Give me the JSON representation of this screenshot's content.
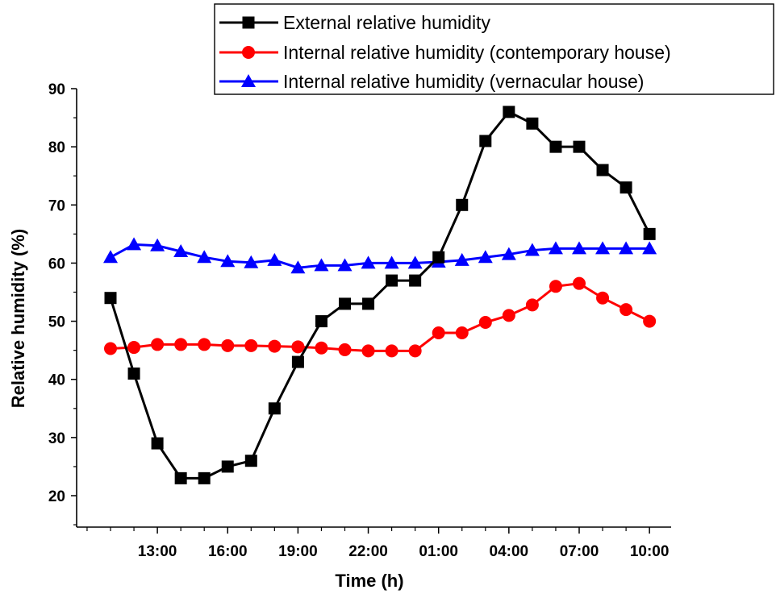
{
  "chart_data": {
    "type": "line",
    "xlabel": "Time (h)",
    "ylabel": "Relative humidity (%)",
    "ylim": [
      15,
      92
    ],
    "yticks": [
      20,
      30,
      40,
      50,
      60,
      70,
      80,
      90
    ],
    "x": [
      "11:00",
      "12:00",
      "13:00",
      "14:00",
      "15:00",
      "16:00",
      "17:00",
      "18:00",
      "19:00",
      "20:00",
      "21:00",
      "22:00",
      "23:00",
      "00:00",
      "01:00",
      "02:00",
      "03:00",
      "04:00",
      "05:00",
      "06:00",
      "07:00",
      "08:00",
      "09:00",
      "10:00"
    ],
    "xtick_labels": [
      "13:00",
      "16:00",
      "19:00",
      "22:00",
      "01:00",
      "04:00",
      "07:00",
      "10:00"
    ],
    "grid": false,
    "legend_position": "top-right",
    "series": [
      {
        "name": "External relative humidity",
        "color": "#000000",
        "marker": "square",
        "values": [
          54,
          41,
          29,
          23,
          23,
          25,
          26,
          35,
          43,
          50,
          53,
          53,
          57,
          57,
          61,
          70,
          81,
          86,
          84,
          80,
          80,
          76,
          73,
          65
        ]
      },
      {
        "name": "Internal relative humidity (contemporary house)",
        "color": "#ff0000",
        "marker": "circle",
        "values": [
          45.3,
          45.5,
          46,
          46,
          46,
          45.8,
          45.8,
          45.7,
          45.6,
          45.4,
          45.1,
          44.9,
          44.9,
          44.9,
          48,
          48,
          49.8,
          51,
          52.8,
          56,
          56.5,
          54,
          52,
          50
        ]
      },
      {
        "name": "Internal relative humidity (vernacular house)",
        "color": "#0000ff",
        "marker": "triangle",
        "values": [
          61,
          63.2,
          63,
          62,
          61,
          60.3,
          60.1,
          60.5,
          59.2,
          59.6,
          59.6,
          60,
          60,
          60,
          60.2,
          60.5,
          61,
          61.5,
          62.2,
          62.5,
          62.5,
          62.5,
          62.5,
          62.5
        ]
      }
    ]
  }
}
